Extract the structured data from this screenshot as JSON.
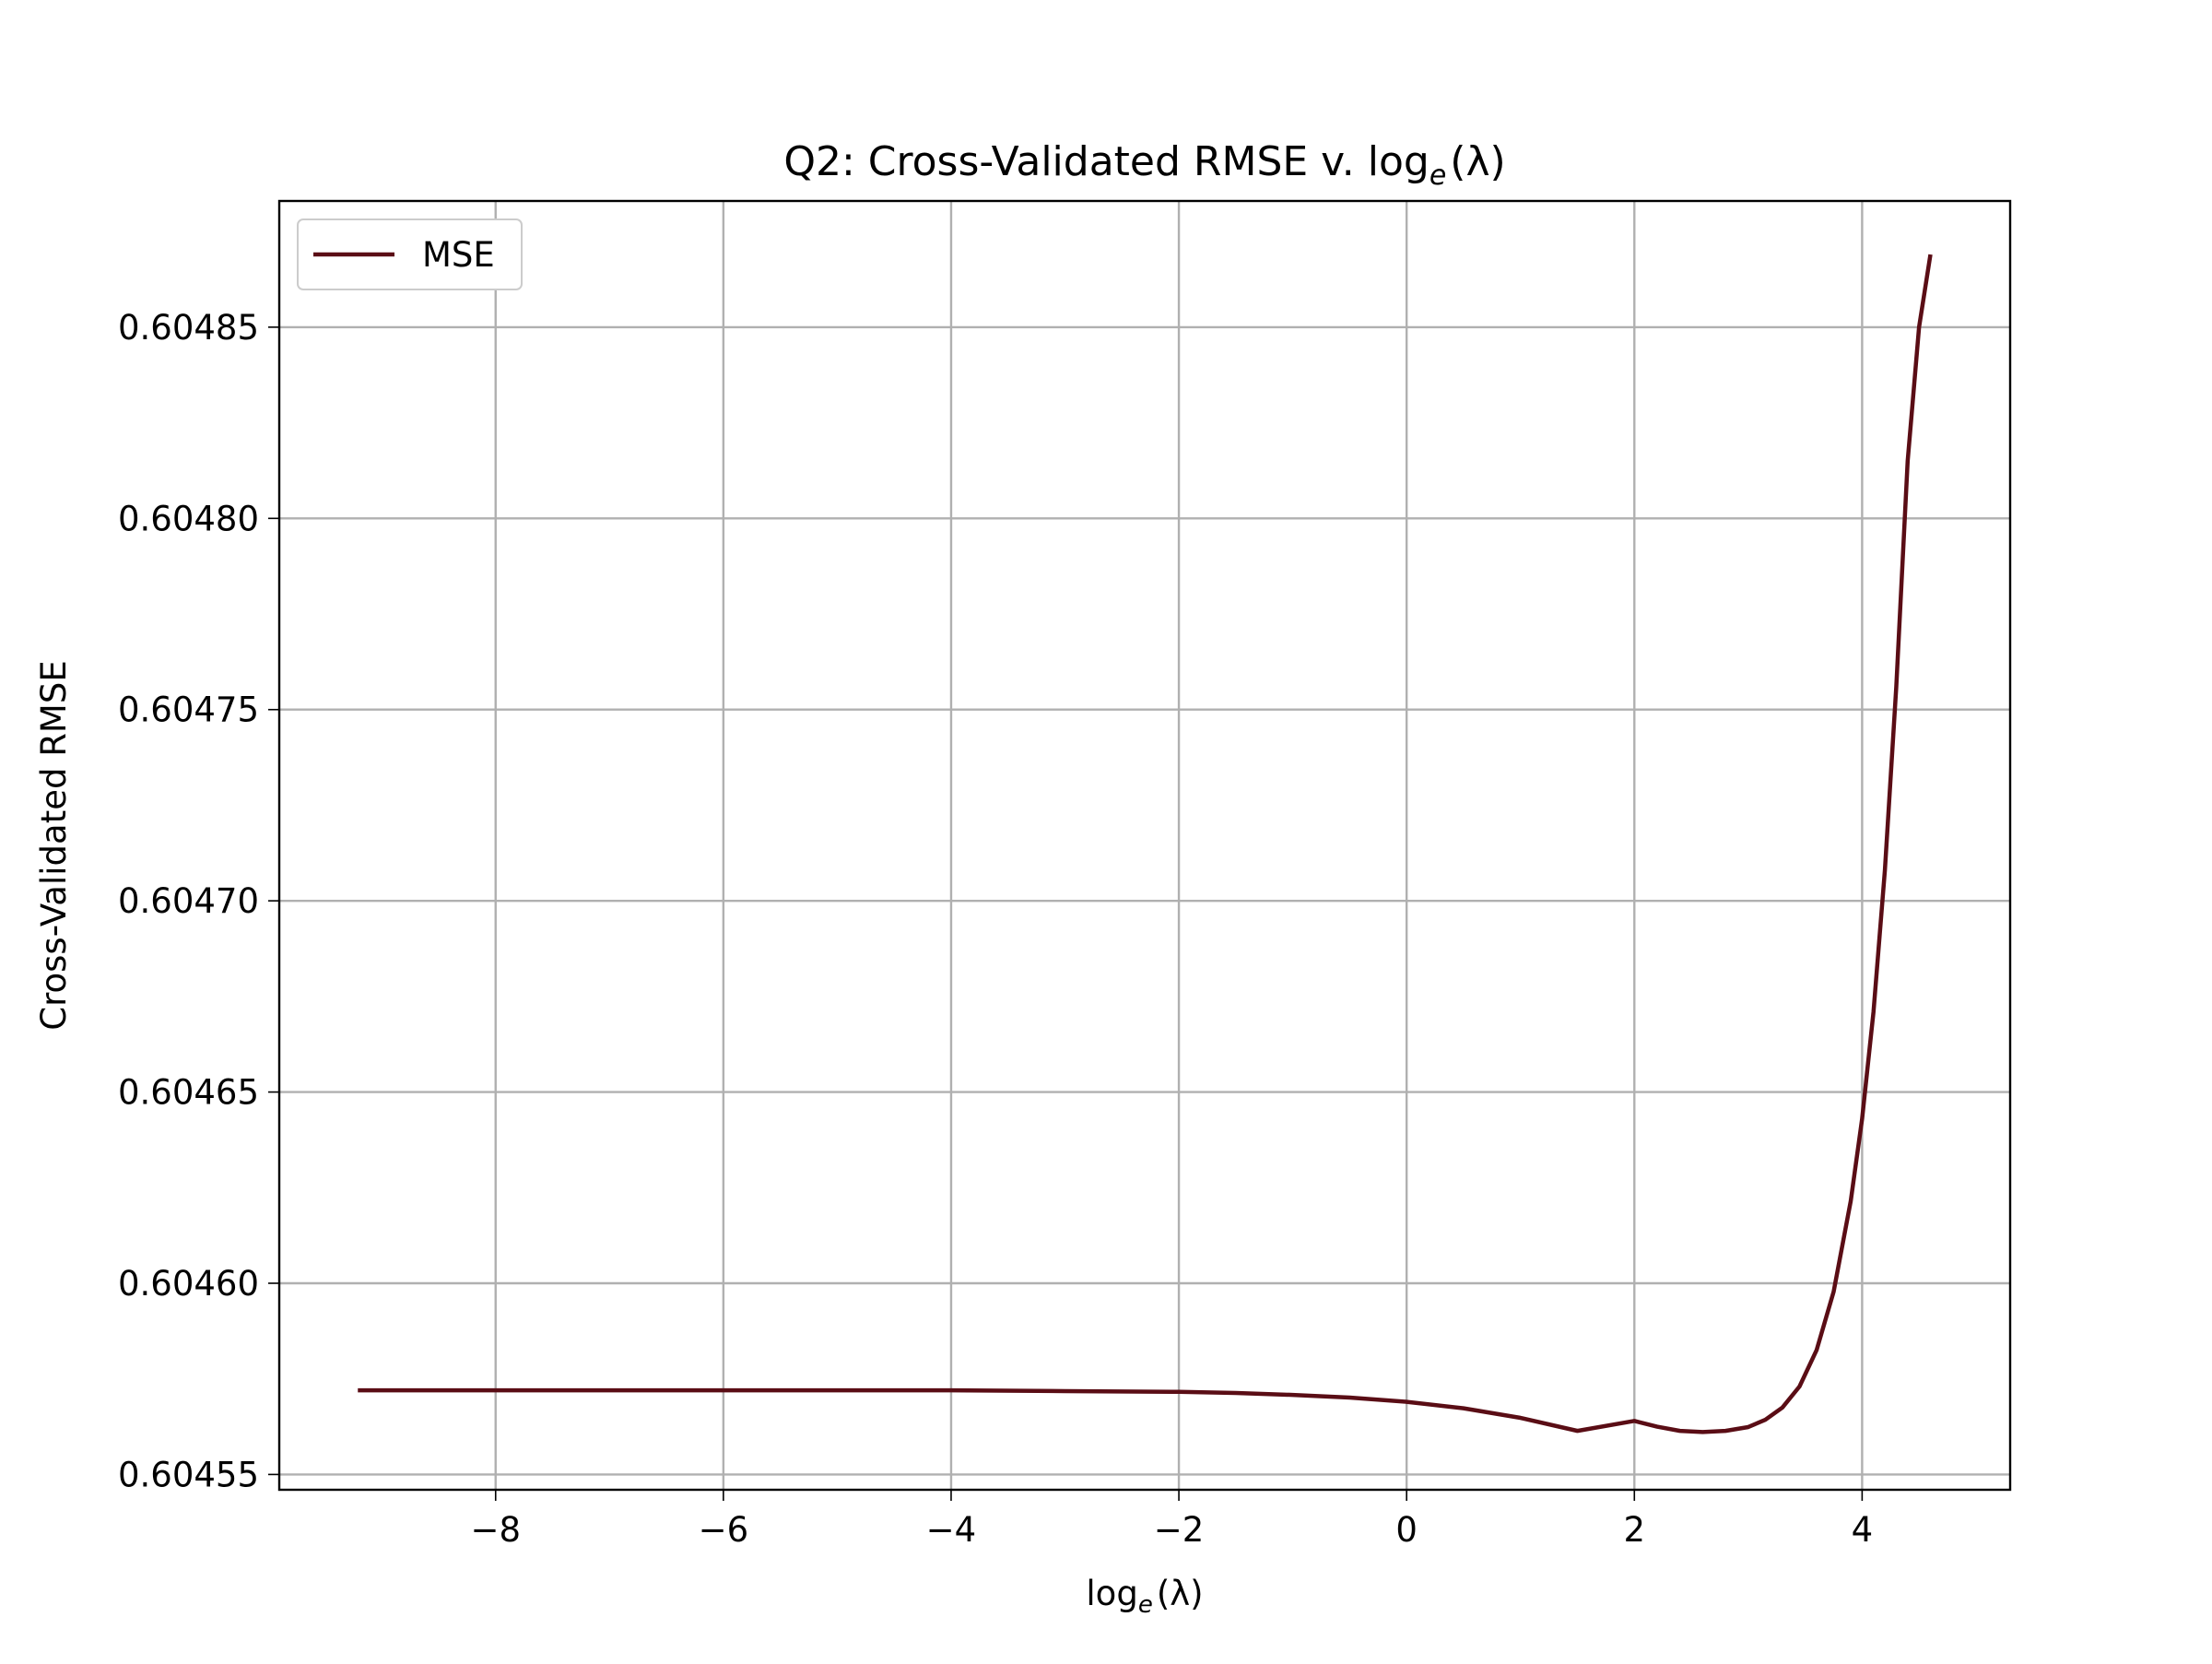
{
  "chart_data": {
    "type": "line",
    "title": {
      "prefix": "Q2: Cross-Validated RMSE v. log",
      "subscript": "e",
      "suffix": "(λ)"
    },
    "xlabel": {
      "prefix": "log",
      "subscript": "e",
      "suffix": "(λ)"
    },
    "ylabel": "Cross-Validated RMSE",
    "xlim": [
      -9.9,
      5.3
    ],
    "ylim": [
      0.604546,
      0.604883
    ],
    "x_ticks": [
      {
        "value": -8,
        "label": "−8"
      },
      {
        "value": -6,
        "label": "−6"
      },
      {
        "value": -4,
        "label": "−4"
      },
      {
        "value": -2,
        "label": "−2"
      },
      {
        "value": 0,
        "label": "0"
      },
      {
        "value": 2,
        "label": "2"
      },
      {
        "value": 4,
        "label": "4"
      }
    ],
    "y_ticks": [
      {
        "value": 0.60455,
        "label": "0.60455"
      },
      {
        "value": 0.6046,
        "label": "0.60460"
      },
      {
        "value": 0.60465,
        "label": "0.60465"
      },
      {
        "value": 0.6047,
        "label": "0.60470"
      },
      {
        "value": 0.60475,
        "label": "0.60475"
      },
      {
        "value": 0.6048,
        "label": "0.60480"
      },
      {
        "value": 0.60485,
        "label": "0.60485"
      }
    ],
    "grid": true,
    "legend": {
      "position": "upper-left",
      "entries": [
        "MSE"
      ]
    },
    "series": [
      {
        "name": "MSE",
        "color": "#5a0d15",
        "x": [
          -9.21,
          -8.0,
          -7.0,
          -6.0,
          -5.0,
          -4.0,
          -3.0,
          -2.0,
          -1.5,
          -1.0,
          -0.5,
          0.0,
          0.5,
          1.0,
          1.5,
          2.0,
          2.2,
          2.4,
          2.6,
          2.8,
          3.0,
          3.15,
          3.3,
          3.45,
          3.6,
          3.75,
          3.9,
          4.0,
          4.1,
          4.2,
          4.3,
          4.4,
          4.5,
          4.6
        ],
        "y": [
          0.604572,
          0.604572,
          0.604572,
          0.604572,
          0.604572,
          0.604572,
          0.6045718,
          0.6045716,
          0.6045713,
          0.6045708,
          0.6045701,
          0.604569,
          0.6045673,
          0.6045648,
          0.6045614,
          0.604564,
          0.6045625,
          0.6045614,
          0.6045611,
          0.6045614,
          0.6045624,
          0.6045643,
          0.6045675,
          0.604573,
          0.6045825,
          0.6045978,
          0.6046215,
          0.604643,
          0.604671,
          0.604708,
          0.604756,
          0.604815,
          0.60485,
          0.604869
        ]
      }
    ]
  }
}
